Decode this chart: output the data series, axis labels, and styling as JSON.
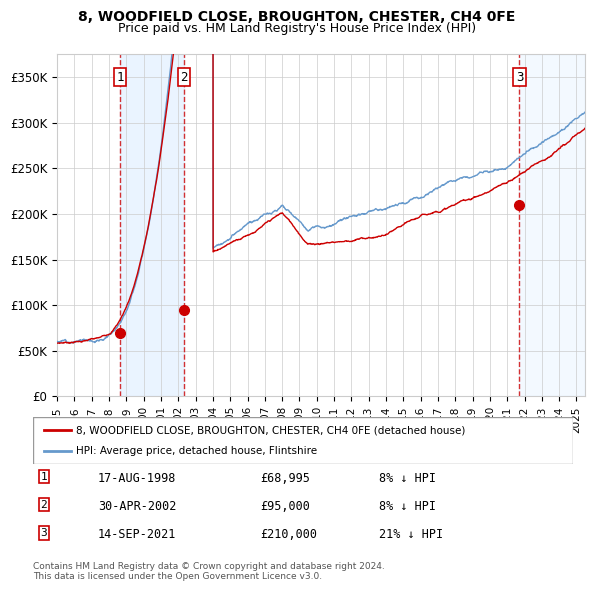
{
  "title1": "8, WOODFIELD CLOSE, BROUGHTON, CHESTER, CH4 0FE",
  "title2": "Price paid vs. HM Land Registry's House Price Index (HPI)",
  "xlabel": "",
  "ylabel": "",
  "ylim": [
    0,
    375000
  ],
  "yticks": [
    0,
    50000,
    100000,
    150000,
    200000,
    250000,
    300000,
    350000
  ],
  "ytick_labels": [
    "£0",
    "£50K",
    "£100K",
    "£150K",
    "£200K",
    "£250K",
    "£300K",
    "£350K"
  ],
  "sale_dates": [
    1998.63,
    2002.33,
    2021.71
  ],
  "sale_prices": [
    68995,
    95000,
    210000
  ],
  "sale_labels": [
    "1",
    "2",
    "3"
  ],
  "color_red": "#cc0000",
  "color_blue": "#6699cc",
  "color_shade": "#ddeeff",
  "legend_label_red": "8, WOODFIELD CLOSE, BROUGHTON, CHESTER, CH4 0FE (detached house)",
  "legend_label_blue": "HPI: Average price, detached house, Flintshire",
  "table_data": [
    [
      "1",
      "17-AUG-1998",
      "£68,995",
      "8% ↓ HPI"
    ],
    [
      "2",
      "30-APR-2002",
      "£95,000",
      "8% ↓ HPI"
    ],
    [
      "3",
      "14-SEP-2021",
      "£210,000",
      "21% ↓ HPI"
    ]
  ],
  "footnote": "Contains HM Land Registry data © Crown copyright and database right 2024.\nThis data is licensed under the Open Government Licence v3.0.",
  "xstart": 1995.0,
  "xend": 2025.5
}
